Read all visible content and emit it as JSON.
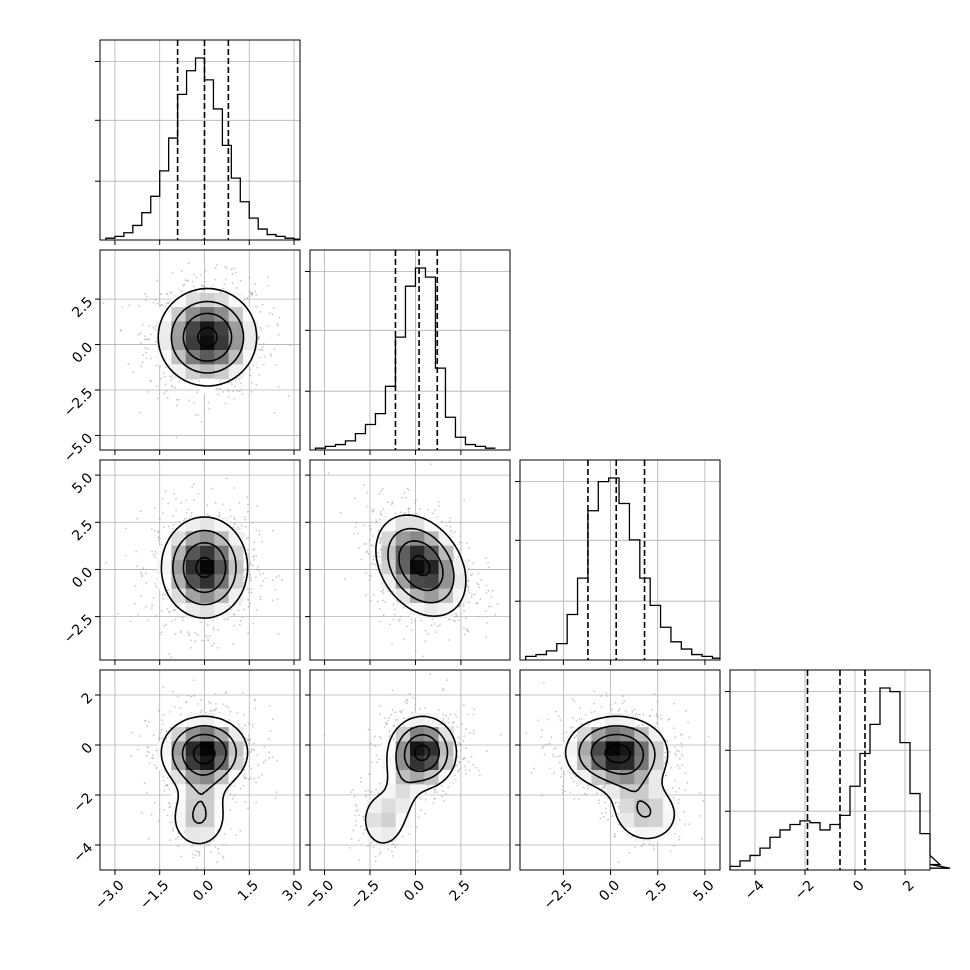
{
  "chart_data": {
    "type": "corner",
    "variables": 4,
    "colors": {
      "line": "#000000",
      "points": "#9a9a9a",
      "grid": "#b0b0b0",
      "density_peak": "#000000"
    },
    "panel_ranges": [
      [
        -3.5,
        3.2
      ],
      [
        -5.8,
        5.2
      ],
      [
        -4.8,
        5.8
      ],
      [
        -5.0,
        3.0
      ]
    ],
    "x_ticks": [
      {
        "panel": 0,
        "labels": [
          "−3.0",
          "−1.5",
          "0.0",
          "1.5",
          "3.0"
        ],
        "values": [
          -3.0,
          -1.5,
          0.0,
          1.5,
          3.0
        ]
      },
      {
        "panel": 1,
        "labels": [
          "−5.0",
          "−2.5",
          "0.0",
          "2.5"
        ],
        "values": [
          -5.0,
          -2.5,
          0.0,
          2.5
        ]
      },
      {
        "panel": 2,
        "labels": [
          "−2.5",
          "0.0",
          "2.5",
          "5.0"
        ],
        "values": [
          -2.5,
          0.0,
          2.5,
          5.0
        ]
      },
      {
        "panel": 3,
        "labels": [
          "−4",
          "−2",
          "0",
          "2"
        ],
        "values": [
          -4,
          -2,
          0,
          2
        ]
      }
    ],
    "y_ticks": [
      {
        "row": 1,
        "labels": [
          "2.5",
          "0.0",
          "−2.5",
          "−5.0"
        ],
        "values": [
          2.5,
          0.0,
          -2.5,
          -5.0
        ]
      },
      {
        "row": 2,
        "labels": [
          "5.0",
          "2.5",
          "0.0",
          "−2.5"
        ],
        "values": [
          5.0,
          2.5,
          0.0,
          -2.5
        ]
      },
      {
        "row": 3,
        "labels": [
          "2",
          "0",
          "−2",
          "−4"
        ],
        "values": [
          2,
          0,
          -2,
          -4
        ]
      }
    ],
    "quantiles": [
      [
        -0.9,
        0.0,
        0.8
      ],
      [
        -1.1,
        0.2,
        1.2
      ],
      [
        -1.2,
        0.3,
        1.8
      ],
      [
        -1.9,
        -0.6,
        0.4
      ]
    ],
    "histograms": [
      {
        "variable": 0,
        "bin_width": 0.3,
        "bin_start": -3.3,
        "counts": [
          0.01,
          0.02,
          0.04,
          0.08,
          0.15,
          0.24,
          0.38,
          0.56,
          0.8,
          0.93,
          1.0,
          0.88,
          0.72,
          0.52,
          0.34,
          0.21,
          0.12,
          0.06,
          0.03,
          0.02,
          0.01,
          0.005
        ]
      },
      {
        "variable": 1,
        "bin_width": 0.55,
        "bin_start": -5.5,
        "counts": [
          0.01,
          0.02,
          0.03,
          0.05,
          0.09,
          0.14,
          0.2,
          0.35,
          0.62,
          0.9,
          1.0,
          0.95,
          0.45,
          0.18,
          0.07,
          0.03,
          0.02,
          0.01
        ]
      },
      {
        "variable": 2,
        "bin_width": 0.55,
        "bin_start": -4.5,
        "counts": [
          0.02,
          0.03,
          0.05,
          0.09,
          0.25,
          0.45,
          0.82,
          0.98,
          1.0,
          0.86,
          0.66,
          0.45,
          0.3,
          0.18,
          0.1,
          0.06,
          0.03,
          0.02,
          0.01
        ]
      },
      {
        "variable": 3,
        "bin_width": 0.4,
        "bin_start": -5.0,
        "counts": [
          0.02,
          0.05,
          0.08,
          0.12,
          0.18,
          0.22,
          0.25,
          0.27,
          0.26,
          0.22,
          0.25,
          0.3,
          0.46,
          0.64,
          0.8,
          1.0,
          0.98,
          0.7,
          0.42,
          0.2,
          0.08,
          0.03,
          0.01
        ]
      }
    ],
    "pairs": [
      {
        "x": 0,
        "y": 1,
        "center": [
          0.1,
          0.4
        ],
        "sigma": [
          0.8,
          1.3
        ],
        "corr": 0.0,
        "tail": null
      },
      {
        "x": 0,
        "y": 2,
        "center": [
          0.0,
          0.1
        ],
        "sigma": [
          0.7,
          1.3
        ],
        "corr": 0.0,
        "tail": null
      },
      {
        "x": 1,
        "y": 2,
        "center": [
          0.3,
          0.2
        ],
        "sigma": [
          1.2,
          1.3
        ],
        "corr": -0.3,
        "tail": null
      },
      {
        "x": 0,
        "y": 3,
        "center": [
          0.0,
          -0.3
        ],
        "sigma": [
          0.7,
          0.7
        ],
        "corr": 0.0,
        "tail": [
          -0.2,
          -3.0
        ]
      },
      {
        "x": 1,
        "y": 3,
        "center": [
          0.4,
          -0.3
        ],
        "sigma": [
          0.9,
          0.7
        ],
        "corr": 0.0,
        "tail": [
          -1.8,
          -3.0
        ]
      },
      {
        "x": 2,
        "y": 3,
        "center": [
          0.3,
          -0.3
        ],
        "sigma": [
          1.3,
          0.7
        ],
        "corr": 0.0,
        "tail": [
          2.0,
          -2.8
        ]
      }
    ]
  }
}
